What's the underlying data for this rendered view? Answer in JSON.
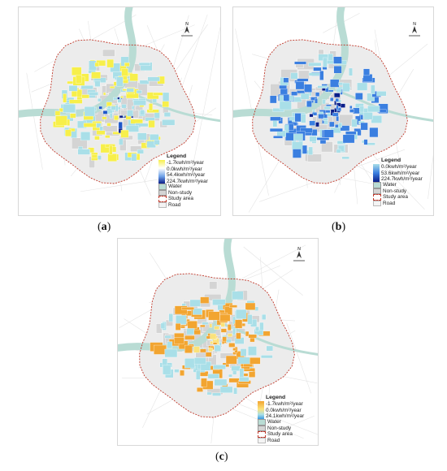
{
  "panels": {
    "a": {
      "caption_letter": "a",
      "legend": {
        "title": "Legend",
        "ramp": [
          "-1.7kwh/m²/year",
          "0.0kwh/m²/year",
          "54.4kwh/m²/year",
          "224.7kwh/m²/year"
        ],
        "items": [
          "Water",
          "Non-study",
          "Study area",
          "Road"
        ]
      },
      "colors": {
        "low": "#f7ef4a",
        "mid": "#a9dfe8",
        "high": "#1f57c9",
        "top": "#0b1f8a"
      }
    },
    "b": {
      "caption_letter": "b",
      "legend": {
        "title": "Legend",
        "ramp": [
          "0.0kwh/m²/year",
          "53.6kwh/m²/year",
          "224.7kwh/m²/year"
        ],
        "items": [
          "Water",
          "Non-study",
          "Study area",
          "Road"
        ]
      },
      "colors": {
        "low": "#a9dfe8",
        "mid": "#3b7fe0",
        "high": "#0b1f8a"
      }
    },
    "c": {
      "caption_letter": "c",
      "legend": {
        "title": "Legend",
        "ramp": [
          "-1.7kwh/m²/year",
          "0.0kwh/m²/year",
          "24.1kwh/m²/year"
        ],
        "items": [
          "Water",
          "Non-study",
          "Study area",
          "Road"
        ]
      },
      "colors": {
        "low": "#f2a531",
        "mid": "#fbe27a",
        "high": "#a9dfe8"
      }
    }
  },
  "symbology": {
    "water": "#b9dcd4",
    "non_study": "#d4d4d4",
    "study_area_boundary": "#c0392b",
    "road": "#e4e4e4"
  },
  "north_arrow_label": "N"
}
